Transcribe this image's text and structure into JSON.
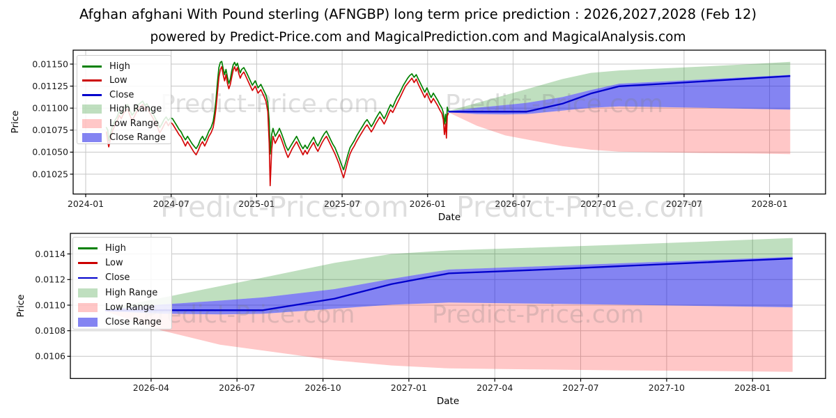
{
  "page": {
    "title": "Afghan afghani With Pound sterling (AFNGBP) long term price prediction : 2026,2027,2028 (Feb 12)",
    "subtitle": "powered by Predict-Price.com and MagicalPrediction.com and MagicalAnalysis.com"
  },
  "watermark": {
    "text": "Predict-Price.com",
    "color": "rgba(128,128,128,0.26)"
  },
  "axis_labels": {
    "x": "Date",
    "y": "Price"
  },
  "legend": {
    "items": [
      {
        "label": "High",
        "swatch": "line",
        "color": "#008000"
      },
      {
        "label": "Low",
        "swatch": "line",
        "color": "#cc0000"
      },
      {
        "label": "Close",
        "swatch": "line",
        "color": "#0000cc"
      },
      {
        "label": "High Range",
        "swatch": "patch",
        "color": "rgba(0,128,0,0.25)"
      },
      {
        "label": "Low Range",
        "swatch": "patch",
        "color": "rgba(255,30,30,0.25)"
      },
      {
        "label": "Close Range",
        "swatch": "patch",
        "color": "rgba(10,10,230,0.5)"
      }
    ]
  },
  "colors": {
    "high_line": "#008000",
    "low_line": "#d40808",
    "close_line": "#0000cc",
    "high_range_fill": "rgba(0,128,0,0.25)",
    "low_range_fill": "rgba(255,30,30,0.25)",
    "close_range_fill": "rgba(10,10,230,0.5)",
    "grid": "#c6c6c6",
    "spine": "#000000",
    "tick_text": "#1a1a1a"
  },
  "chart_data": [
    {
      "type": "line",
      "title": "",
      "xlabel": "Date",
      "ylabel": "Price",
      "grid": true,
      "legend_position": "upper left",
      "x_unit": "months since 2024-01-01",
      "x_ticks": {
        "positions": [
          0,
          6,
          12,
          18,
          24,
          30,
          36,
          42,
          48
        ],
        "labels": [
          "2024-01",
          "2024-07",
          "2025-01",
          "2025-07",
          "2026-01",
          "2026-07",
          "2027-01",
          "2027-07",
          "2028-01"
        ]
      },
      "x_range": [
        -0.88,
        51.93
      ],
      "y_ticks": {
        "values": [
          0.0115,
          0.01125,
          0.011,
          0.01075,
          0.0105,
          0.01025
        ],
        "labels": [
          "0.01150",
          "0.01125",
          "0.01100",
          "0.01075",
          "0.01050",
          "0.01025"
        ]
      },
      "y_range": [
        0.010025,
        0.011658
      ],
      "historical": {
        "description": "High/Low daily lines, Feb 2024 - Feb 2026, t in months since 2024-01-01, values [t, low, high]",
        "points": [
          [
            1.45,
            0.01073,
            0.01078
          ],
          [
            1.55,
            0.01062,
            0.01075
          ],
          [
            1.62,
            0.01056,
            0.01063
          ],
          [
            1.75,
            0.01066,
            0.01072
          ],
          [
            1.9,
            0.01075,
            0.01081
          ],
          [
            2.05,
            0.0108,
            0.01086
          ],
          [
            2.2,
            0.01085,
            0.0109
          ],
          [
            2.35,
            0.01092,
            0.01097
          ],
          [
            2.5,
            0.01088,
            0.01093
          ],
          [
            2.65,
            0.01094,
            0.01099
          ],
          [
            2.8,
            0.01097,
            0.01102
          ],
          [
            2.95,
            0.01099,
            0.01104
          ],
          [
            3.1,
            0.01092,
            0.01098
          ],
          [
            3.25,
            0.01086,
            0.01092
          ],
          [
            3.4,
            0.0109,
            0.01095
          ],
          [
            3.55,
            0.01095,
            0.011
          ],
          [
            3.7,
            0.01099,
            0.01104
          ],
          [
            3.85,
            0.01102,
            0.01106
          ],
          [
            4.0,
            0.01104,
            0.01108
          ],
          [
            4.15,
            0.01098,
            0.01103
          ],
          [
            4.3,
            0.01101,
            0.01105
          ],
          [
            4.45,
            0.01096,
            0.01101
          ],
          [
            4.6,
            0.01092,
            0.01097
          ],
          [
            4.75,
            0.01088,
            0.01093
          ],
          [
            4.9,
            0.01083,
            0.01088
          ],
          [
            5.05,
            0.01078,
            0.01084
          ],
          [
            5.2,
            0.01072,
            0.01078
          ],
          [
            5.35,
            0.01076,
            0.01082
          ],
          [
            5.5,
            0.01081,
            0.01087
          ],
          [
            5.65,
            0.01085,
            0.0109
          ],
          [
            5.8,
            0.0108,
            0.01086
          ],
          [
            5.95,
            0.01084,
            0.01089
          ],
          [
            6.1,
            0.01082,
            0.01088
          ],
          [
            6.25,
            0.01078,
            0.01084
          ],
          [
            6.4,
            0.01074,
            0.0108
          ],
          [
            6.55,
            0.0107,
            0.01076
          ],
          [
            6.7,
            0.01067,
            0.01073
          ],
          [
            6.85,
            0.01062,
            0.01068
          ],
          [
            7.0,
            0.01057,
            0.01064
          ],
          [
            7.15,
            0.01062,
            0.01068
          ],
          [
            7.3,
            0.01058,
            0.01064
          ],
          [
            7.45,
            0.01054,
            0.0106
          ],
          [
            7.6,
            0.0105,
            0.01057
          ],
          [
            7.75,
            0.01047,
            0.01054
          ],
          [
            7.9,
            0.01052,
            0.01058
          ],
          [
            8.05,
            0.01058,
            0.01064
          ],
          [
            8.2,
            0.01062,
            0.01068
          ],
          [
            8.35,
            0.01057,
            0.01063
          ],
          [
            8.5,
            0.01062,
            0.01068
          ],
          [
            8.65,
            0.01068,
            0.01074
          ],
          [
            8.8,
            0.01072,
            0.01078
          ],
          [
            8.95,
            0.01078,
            0.01085
          ],
          [
            9.05,
            0.01088,
            0.01096
          ],
          [
            9.15,
            0.011,
            0.0111
          ],
          [
            9.25,
            0.01118,
            0.0113
          ],
          [
            9.35,
            0.01135,
            0.01146
          ],
          [
            9.45,
            0.01144,
            0.01152
          ],
          [
            9.55,
            0.01147,
            0.01153
          ],
          [
            9.65,
            0.01138,
            0.01145
          ],
          [
            9.75,
            0.01131,
            0.01138
          ],
          [
            9.85,
            0.01138,
            0.01144
          ],
          [
            9.95,
            0.01128,
            0.01135
          ],
          [
            10.05,
            0.01122,
            0.01128
          ],
          [
            10.15,
            0.01127,
            0.01133
          ],
          [
            10.25,
            0.01135,
            0.01142
          ],
          [
            10.35,
            0.01143,
            0.01149
          ],
          [
            10.45,
            0.01147,
            0.01152
          ],
          [
            10.55,
            0.01142,
            0.01148
          ],
          [
            10.65,
            0.01146,
            0.01151
          ],
          [
            10.75,
            0.01139,
            0.01145
          ],
          [
            10.85,
            0.01134,
            0.0114
          ],
          [
            10.95,
            0.01138,
            0.01144
          ],
          [
            11.1,
            0.01141,
            0.01146
          ],
          [
            11.3,
            0.01134,
            0.0114
          ],
          [
            11.5,
            0.01127,
            0.01133
          ],
          [
            11.7,
            0.0112,
            0.01126
          ],
          [
            11.9,
            0.01125,
            0.01131
          ],
          [
            12.1,
            0.01117,
            0.01123
          ],
          [
            12.3,
            0.01121,
            0.01127
          ],
          [
            12.5,
            0.01114,
            0.0112
          ],
          [
            12.65,
            0.01108,
            0.01115
          ],
          [
            12.78,
            0.01096,
            0.01106
          ],
          [
            12.88,
            0.0106,
            0.01085
          ],
          [
            12.95,
            0.01012,
            0.01048
          ],
          [
            13.05,
            0.01052,
            0.0107
          ],
          [
            13.15,
            0.01068,
            0.01077
          ],
          [
            13.3,
            0.0106,
            0.01068
          ],
          [
            13.45,
            0.01065,
            0.01072
          ],
          [
            13.6,
            0.0107,
            0.01077
          ],
          [
            13.75,
            0.01064,
            0.01071
          ],
          [
            13.9,
            0.01057,
            0.01064
          ],
          [
            14.05,
            0.0105,
            0.01057
          ],
          [
            14.2,
            0.01044,
            0.01052
          ],
          [
            14.35,
            0.01049,
            0.01056
          ],
          [
            14.5,
            0.01054,
            0.0106
          ],
          [
            14.65,
            0.01058,
            0.01064
          ],
          [
            14.8,
            0.01062,
            0.01068
          ],
          [
            14.95,
            0.01057,
            0.01063
          ],
          [
            15.1,
            0.01052,
            0.01058
          ],
          [
            15.25,
            0.01047,
            0.01054
          ],
          [
            15.4,
            0.01052,
            0.01058
          ],
          [
            15.55,
            0.01048,
            0.01054
          ],
          [
            15.7,
            0.01053,
            0.01059
          ],
          [
            15.85,
            0.01057,
            0.01063
          ],
          [
            16.0,
            0.01061,
            0.01067
          ],
          [
            16.15,
            0.01055,
            0.01061
          ],
          [
            16.3,
            0.01051,
            0.01057
          ],
          [
            16.45,
            0.01056,
            0.01062
          ],
          [
            16.6,
            0.01061,
            0.01067
          ],
          [
            16.75,
            0.01065,
            0.01071
          ],
          [
            16.9,
            0.01068,
            0.01074
          ],
          [
            17.05,
            0.01063,
            0.01069
          ],
          [
            17.2,
            0.01058,
            0.01064
          ],
          [
            17.35,
            0.01053,
            0.01059
          ],
          [
            17.5,
            0.01048,
            0.01055
          ],
          [
            17.65,
            0.01042,
            0.01049
          ],
          [
            17.8,
            0.01036,
            0.01043
          ],
          [
            17.95,
            0.01028,
            0.01036
          ],
          [
            18.1,
            0.01021,
            0.0103
          ],
          [
            18.25,
            0.0103,
            0.01038
          ],
          [
            18.4,
            0.0104,
            0.01047
          ],
          [
            18.55,
            0.01048,
            0.01055
          ],
          [
            18.7,
            0.01053,
            0.01059
          ],
          [
            18.85,
            0.01057,
            0.01063
          ],
          [
            19.0,
            0.01062,
            0.01068
          ],
          [
            19.15,
            0.01066,
            0.01072
          ],
          [
            19.3,
            0.0107,
            0.01076
          ],
          [
            19.45,
            0.01074,
            0.0108
          ],
          [
            19.6,
            0.01078,
            0.01084
          ],
          [
            19.75,
            0.01081,
            0.01087
          ],
          [
            19.9,
            0.01077,
            0.01083
          ],
          [
            20.05,
            0.01073,
            0.01079
          ],
          [
            20.2,
            0.01077,
            0.01083
          ],
          [
            20.35,
            0.01082,
            0.01088
          ],
          [
            20.5,
            0.01086,
            0.01092
          ],
          [
            20.65,
            0.0109,
            0.01096
          ],
          [
            20.8,
            0.01086,
            0.01092
          ],
          [
            20.95,
            0.01082,
            0.01088
          ],
          [
            21.1,
            0.01087,
            0.01093
          ],
          [
            21.25,
            0.01093,
            0.01099
          ],
          [
            21.4,
            0.01098,
            0.01104
          ],
          [
            21.55,
            0.01095,
            0.01101
          ],
          [
            21.7,
            0.011,
            0.01107
          ],
          [
            21.85,
            0.01105,
            0.01112
          ],
          [
            22.0,
            0.0111,
            0.01116
          ],
          [
            22.15,
            0.01115,
            0.01121
          ],
          [
            22.3,
            0.0112,
            0.01126
          ],
          [
            22.45,
            0.01125,
            0.0113
          ],
          [
            22.6,
            0.01128,
            0.01134
          ],
          [
            22.75,
            0.01131,
            0.01137
          ],
          [
            22.9,
            0.01134,
            0.01139
          ],
          [
            23.05,
            0.01129,
            0.01135
          ],
          [
            23.2,
            0.01133,
            0.01138
          ],
          [
            23.35,
            0.01127,
            0.01133
          ],
          [
            23.5,
            0.01122,
            0.01128
          ],
          [
            23.65,
            0.01117,
            0.01123
          ],
          [
            23.8,
            0.01112,
            0.01118
          ],
          [
            23.95,
            0.01117,
            0.01123
          ],
          [
            24.1,
            0.01111,
            0.01117
          ],
          [
            24.25,
            0.01106,
            0.01112
          ],
          [
            24.4,
            0.01111,
            0.01117
          ],
          [
            24.55,
            0.01107,
            0.01113
          ],
          [
            24.7,
            0.01103,
            0.01109
          ],
          [
            24.85,
            0.01098,
            0.01104
          ],
          [
            25.0,
            0.01094,
            0.011
          ],
          [
            25.1,
            0.01087,
            0.01095
          ],
          [
            25.18,
            0.0107,
            0.01082
          ],
          [
            25.26,
            0.01082,
            0.01093
          ],
          [
            25.32,
            0.01066,
            0.01077
          ],
          [
            25.38,
            0.01091,
            0.01101
          ],
          [
            25.45,
            0.01094,
            0.01097
          ]
        ]
      },
      "prediction_start_t": 25.45,
      "prediction": {
        "description": "m = months since 2026-02-12 (forecast start); Close line plus band boundaries",
        "m": [
          0,
          2,
          4,
          5.5,
          8,
          10,
          12,
          15,
          18,
          21,
          24
        ],
        "close": [
          0.01096,
          0.01096,
          0.01096,
          0.01096,
          0.01105,
          0.011165,
          0.011248,
          0.011275,
          0.011305,
          0.011335,
          0.011365
        ],
        "close_range_top": [
          0.010965,
          0.011005,
          0.011035,
          0.01106,
          0.011125,
          0.011205,
          0.011278,
          0.011302,
          0.011327,
          0.011352,
          0.011378
        ],
        "close_range_bottom": [
          0.010952,
          0.010933,
          0.010928,
          0.010932,
          0.010972,
          0.011003,
          0.01102,
          0.011012,
          0.011003,
          0.010993,
          0.010983
        ],
        "high_range_top": [
          0.010968,
          0.011058,
          0.011148,
          0.011215,
          0.01133,
          0.0114,
          0.011428,
          0.01145,
          0.011473,
          0.011498,
          0.011525
        ],
        "low_range_bottom": [
          0.010952,
          0.0108,
          0.01069,
          0.010645,
          0.010568,
          0.010528,
          0.010505,
          0.010497,
          0.01049,
          0.010485,
          0.010478
        ]
      }
    },
    {
      "type": "line",
      "title": "",
      "xlabel": "Date",
      "ylabel": "Price",
      "grid": true,
      "legend_position": "upper left",
      "note": "zoomed view of the same prediction series as chart 0 (close + high/low/close ranges)",
      "x_unit": "months since 2026-02-12",
      "x_ticks": {
        "positions": [
          1.6,
          4.6,
          7.6,
          10.6,
          13.6,
          16.6,
          19.6,
          22.6
        ],
        "labels": [
          "2026-04",
          "2026-07",
          "2026-10",
          "2027-01",
          "2027-04",
          "2027-07",
          "2027-10",
          "2028-01"
        ]
      },
      "x_range": [
        -1.22,
        25.15
      ],
      "y_ticks": {
        "values": [
          0.0114,
          0.0112,
          0.011,
          0.0108,
          0.0106
        ],
        "labels": [
          "0.0114",
          "0.0112",
          "0.0110",
          "0.0108",
          "0.0106"
        ]
      },
      "y_range": [
        0.010426,
        0.011561
      ]
    }
  ]
}
